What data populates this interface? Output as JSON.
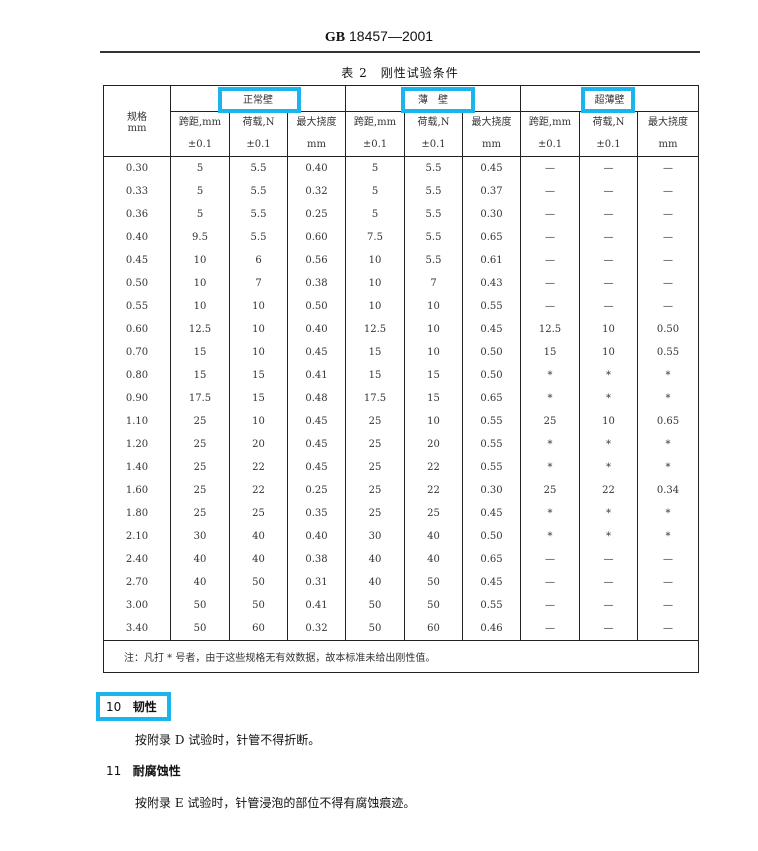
{
  "header": {
    "standard_prefix": "GB",
    "standard_number": "18457—2001"
  },
  "table": {
    "caption": "表 2　刚性试验条件",
    "spec_header": "规格",
    "spec_unit": "mm",
    "groups": [
      "正常壁",
      "薄　壁",
      "超薄壁"
    ],
    "sub_headers": [
      {
        "line1": "跨距,mm",
        "line2": "±0.1"
      },
      {
        "line1": "荷载,N",
        "line2": "±0.1"
      },
      {
        "line1": "最大挠度",
        "line2": "mm"
      }
    ],
    "rows": [
      [
        "0.30",
        "5",
        "5.5",
        "0.40",
        "5",
        "5.5",
        "0.45",
        "—",
        "—",
        "—"
      ],
      [
        "0.33",
        "5",
        "5.5",
        "0.32",
        "5",
        "5.5",
        "0.37",
        "—",
        "—",
        "—"
      ],
      [
        "0.36",
        "5",
        "5.5",
        "0.25",
        "5",
        "5.5",
        "0.30",
        "—",
        "—",
        "—"
      ],
      [
        "0.40",
        "9.5",
        "5.5",
        "0.60",
        "7.5",
        "5.5",
        "0.65",
        "—",
        "—",
        "—"
      ],
      [
        "0.45",
        "10",
        "6",
        "0.56",
        "10",
        "5.5",
        "0.61",
        "—",
        "—",
        "—"
      ],
      [
        "0.50",
        "10",
        "7",
        "0.38",
        "10",
        "7",
        "0.43",
        "—",
        "—",
        "—"
      ],
      [
        "0.55",
        "10",
        "10",
        "0.50",
        "10",
        "10",
        "0.55",
        "—",
        "—",
        "—"
      ],
      [
        "0.60",
        "12.5",
        "10",
        "0.40",
        "12.5",
        "10",
        "0.45",
        "12.5",
        "10",
        "0.50"
      ],
      [
        "0.70",
        "15",
        "10",
        "0.45",
        "15",
        "10",
        "0.50",
        "15",
        "10",
        "0.55"
      ],
      [
        "0.80",
        "15",
        "15",
        "0.41",
        "15",
        "15",
        "0.50",
        "*",
        "*",
        "*"
      ],
      [
        "0.90",
        "17.5",
        "15",
        "0.48",
        "17.5",
        "15",
        "0.65",
        "*",
        "*",
        "*"
      ],
      [
        "1.10",
        "25",
        "10",
        "0.45",
        "25",
        "10",
        "0.55",
        "25",
        "10",
        "0.65"
      ],
      [
        "1.20",
        "25",
        "20",
        "0.45",
        "25",
        "20",
        "0.55",
        "*",
        "*",
        "*"
      ],
      [
        "1.40",
        "25",
        "22",
        "0.45",
        "25",
        "22",
        "0.55",
        "*",
        "*",
        "*"
      ],
      [
        "1.60",
        "25",
        "22",
        "0.25",
        "25",
        "22",
        "0.30",
        "25",
        "22",
        "0.34"
      ],
      [
        "1.80",
        "25",
        "25",
        "0.35",
        "25",
        "25",
        "0.45",
        "*",
        "*",
        "*"
      ],
      [
        "2.10",
        "30",
        "40",
        "0.40",
        "30",
        "40",
        "0.50",
        "*",
        "*",
        "*"
      ],
      [
        "2.40",
        "40",
        "40",
        "0.38",
        "40",
        "40",
        "0.65",
        "—",
        "—",
        "—"
      ],
      [
        "2.70",
        "40",
        "50",
        "0.31",
        "40",
        "50",
        "0.45",
        "—",
        "—",
        "—"
      ],
      [
        "3.00",
        "50",
        "50",
        "0.41",
        "50",
        "50",
        "0.55",
        "—",
        "—",
        "—"
      ],
      [
        "3.40",
        "50",
        "60",
        "0.32",
        "50",
        "60",
        "0.46",
        "—",
        "—",
        "—"
      ]
    ],
    "note": "注：凡打 * 号者，由于这些规格无有效数据，故本标准未给出刚性值。"
  },
  "sections": [
    {
      "number": "10",
      "title": "韧性",
      "body": "按附录 D 试验时，针管不得折断。"
    },
    {
      "number": "11",
      "title": "耐腐蚀性",
      "body": "按附录 E 试验时，针管浸泡的部位不得有腐蚀痕迹。"
    }
  ],
  "highlight_color": "#1ab4ee"
}
